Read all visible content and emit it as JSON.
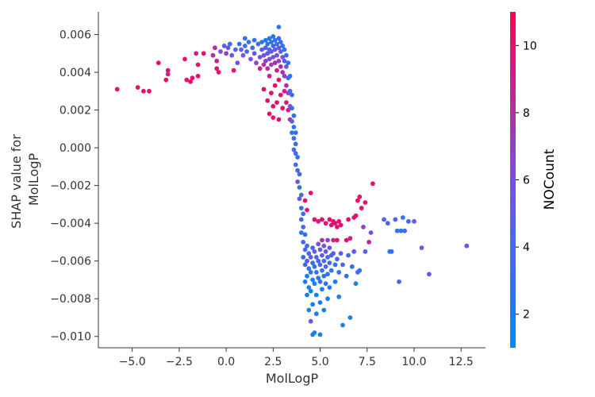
{
  "chart_data": {
    "type": "scatter",
    "xlabel": "MolLogP",
    "ylabel_lines": [
      "SHAP value for",
      "MolLogP"
    ],
    "xlim": [
      -6.8,
      13.8
    ],
    "ylim": [
      -0.0106,
      0.0072
    ],
    "x_ticks": [
      -5.0,
      -2.5,
      0.0,
      2.5,
      5.0,
      7.5,
      10.0,
      12.5
    ],
    "x_tick_labels": [
      "−5.0",
      "−2.5",
      "0.0",
      "2.5",
      "5.0",
      "7.5",
      "10.0",
      "12.5"
    ],
    "y_ticks": [
      0.006,
      0.004,
      0.002,
      0.0,
      -0.002,
      -0.004,
      -0.006,
      -0.008,
      -0.01
    ],
    "y_tick_labels": [
      "0.006",
      "0.004",
      "0.002",
      "0.000",
      "−0.002",
      "−0.004",
      "−0.006",
      "−0.008",
      "−0.010"
    ],
    "colorbar": {
      "label": "NOCount",
      "range": [
        1,
        11
      ],
      "ticks": [
        2,
        4,
        6,
        8,
        10
      ],
      "tick_labels": [
        "2",
        "4",
        "6",
        "8",
        "10"
      ],
      "colors": [
        "#008afb",
        "#7a4fe0",
        "#ff0052"
      ]
    },
    "grid": false,
    "points": [
      [
        -5.8,
        0.0031,
        10
      ],
      [
        -4.7,
        0.0032,
        10
      ],
      [
        -4.4,
        0.003,
        10
      ],
      [
        -4.1,
        0.003,
        10
      ],
      [
        -3.6,
        0.0045,
        10
      ],
      [
        -3.2,
        0.0036,
        10
      ],
      [
        -3.1,
        0.0041,
        10
      ],
      [
        -3.1,
        0.0039,
        9
      ],
      [
        -2.2,
        0.0047,
        10
      ],
      [
        -2.1,
        0.0036,
        10
      ],
      [
        -1.9,
        0.0035,
        10
      ],
      [
        -1.8,
        0.0037,
        10
      ],
      [
        -1.6,
        0.005,
        9
      ],
      [
        -1.5,
        0.0044,
        10
      ],
      [
        -1.5,
        0.0038,
        10
      ],
      [
        -1.2,
        0.005,
        10
      ],
      [
        -0.7,
        0.0049,
        8
      ],
      [
        -0.6,
        0.0053,
        8
      ],
      [
        -0.5,
        0.0042,
        10
      ],
      [
        -0.5,
        0.0046,
        9
      ],
      [
        -0.4,
        0.004,
        10
      ],
      [
        -0.3,
        0.0051,
        6
      ],
      [
        -0.1,
        0.0054,
        5
      ],
      [
        0.0,
        0.005,
        7
      ],
      [
        0.1,
        0.0053,
        5
      ],
      [
        0.2,
        0.0055,
        4
      ],
      [
        0.3,
        0.0049,
        5
      ],
      [
        0.4,
        0.0041,
        10
      ],
      [
        0.5,
        0.0052,
        4
      ],
      [
        0.6,
        0.0045,
        6
      ],
      [
        0.7,
        0.0055,
        3
      ],
      [
        0.8,
        0.0052,
        5
      ],
      [
        0.9,
        0.0049,
        6
      ],
      [
        1.0,
        0.0054,
        4
      ],
      [
        1.0,
        0.0058,
        3
      ],
      [
        1.1,
        0.0051,
        4
      ],
      [
        1.2,
        0.0056,
        3
      ],
      [
        1.3,
        0.0047,
        6
      ],
      [
        1.4,
        0.0053,
        4
      ],
      [
        1.5,
        0.0057,
        3
      ],
      [
        1.5,
        0.005,
        5
      ],
      [
        1.6,
        0.0045,
        7
      ],
      [
        1.7,
        0.0055,
        4
      ],
      [
        1.8,
        0.0048,
        6
      ],
      [
        1.8,
        0.0042,
        9
      ],
      [
        1.9,
        0.0056,
        3
      ],
      [
        1.9,
        0.0052,
        4
      ],
      [
        2.0,
        0.0049,
        6
      ],
      [
        2.0,
        0.0044,
        8
      ],
      [
        2.0,
        0.0031,
        10
      ],
      [
        2.1,
        0.0057,
        2
      ],
      [
        2.1,
        0.0053,
        5
      ],
      [
        2.1,
        0.0046,
        7
      ],
      [
        2.2,
        0.0055,
        3
      ],
      [
        2.2,
        0.005,
        5
      ],
      [
        2.2,
        0.0042,
        8
      ],
      [
        2.2,
        0.0025,
        10
      ],
      [
        2.3,
        0.0058,
        3
      ],
      [
        2.3,
        0.0052,
        4
      ],
      [
        2.3,
        0.0047,
        6
      ],
      [
        2.3,
        0.0038,
        9
      ],
      [
        2.3,
        0.0018,
        10
      ],
      [
        2.4,
        0.0056,
        3
      ],
      [
        2.4,
        0.0051,
        5
      ],
      [
        2.4,
        0.0044,
        7
      ],
      [
        2.4,
        0.0029,
        10
      ],
      [
        2.5,
        0.0059,
        2
      ],
      [
        2.5,
        0.0054,
        4
      ],
      [
        2.5,
        0.0048,
        6
      ],
      [
        2.5,
        0.0022,
        10
      ],
      [
        2.5,
        0.0016,
        10
      ],
      [
        2.6,
        0.0057,
        3
      ],
      [
        2.6,
        0.0052,
        5
      ],
      [
        2.6,
        0.0045,
        8
      ],
      [
        2.6,
        0.0033,
        10
      ],
      [
        2.7,
        0.0055,
        3
      ],
      [
        2.7,
        0.0049,
        6
      ],
      [
        2.7,
        0.0041,
        9
      ],
      [
        2.7,
        0.0024,
        10
      ],
      [
        2.8,
        0.0064,
        3
      ],
      [
        2.8,
        0.0058,
        4
      ],
      [
        2.8,
        0.0053,
        5
      ],
      [
        2.8,
        0.0046,
        7
      ],
      [
        2.8,
        0.0036,
        10
      ],
      [
        2.8,
        0.0015,
        10
      ],
      [
        2.9,
        0.0056,
        3
      ],
      [
        2.9,
        0.0051,
        5
      ],
      [
        2.9,
        0.0043,
        8
      ],
      [
        2.9,
        0.0028,
        10
      ],
      [
        3.0,
        0.0054,
        3
      ],
      [
        3.0,
        0.0048,
        6
      ],
      [
        3.0,
        0.004,
        8
      ],
      [
        3.0,
        0.0021,
        10
      ],
      [
        3.1,
        0.0052,
        3
      ],
      [
        3.1,
        0.0046,
        5
      ],
      [
        3.1,
        0.0038,
        7
      ],
      [
        3.1,
        0.003,
        9
      ],
      [
        3.2,
        0.0049,
        3
      ],
      [
        3.2,
        0.0043,
        5
      ],
      [
        3.2,
        0.0033,
        8
      ],
      [
        3.2,
        0.0024,
        10
      ],
      [
        3.3,
        0.0045,
        3
      ],
      [
        3.3,
        0.0037,
        4
      ],
      [
        3.3,
        0.0029,
        7
      ],
      [
        3.3,
        0.002,
        9
      ],
      [
        3.4,
        0.0038,
        3
      ],
      [
        3.4,
        0.003,
        4
      ],
      [
        3.4,
        0.0022,
        6
      ],
      [
        3.4,
        0.0015,
        8
      ],
      [
        3.5,
        0.0028,
        3
      ],
      [
        3.5,
        0.0021,
        4
      ],
      [
        3.5,
        0.0014,
        5
      ],
      [
        3.5,
        0.0008,
        3
      ],
      [
        3.6,
        0.0017,
        3
      ],
      [
        3.6,
        0.0011,
        3
      ],
      [
        3.6,
        0.0005,
        4
      ],
      [
        3.6,
        -0.0001,
        4
      ],
      [
        3.7,
        0.0008,
        3
      ],
      [
        3.7,
        0.0002,
        3
      ],
      [
        3.7,
        -0.0003,
        4
      ],
      [
        3.7,
        -0.0009,
        4
      ],
      [
        3.8,
        -0.0005,
        3
      ],
      [
        3.8,
        -0.0012,
        4
      ],
      [
        3.8,
        -0.0018,
        5
      ],
      [
        3.9,
        -0.0014,
        4
      ],
      [
        3.9,
        -0.0021,
        3
      ],
      [
        3.9,
        -0.0027,
        5
      ],
      [
        4.0,
        -0.0025,
        4
      ],
      [
        4.0,
        -0.0032,
        3
      ],
      [
        4.0,
        -0.0038,
        4
      ],
      [
        4.0,
        -0.0045,
        3
      ],
      [
        4.1,
        -0.0035,
        3
      ],
      [
        4.1,
        -0.0042,
        4
      ],
      [
        4.1,
        -0.005,
        4
      ],
      [
        4.1,
        -0.0058,
        3
      ],
      [
        4.2,
        -0.0028,
        10
      ],
      [
        4.2,
        -0.0046,
        3
      ],
      [
        4.2,
        -0.0054,
        4
      ],
      [
        4.2,
        -0.0062,
        3
      ],
      [
        4.2,
        -0.0071,
        2
      ],
      [
        4.3,
        -0.0033,
        10
      ],
      [
        4.3,
        -0.0052,
        4
      ],
      [
        4.3,
        -0.006,
        5
      ],
      [
        4.3,
        -0.0068,
        2
      ],
      [
        4.3,
        -0.0078,
        2
      ],
      [
        4.4,
        -0.0056,
        4
      ],
      [
        4.4,
        -0.0064,
        3
      ],
      [
        4.4,
        -0.0074,
        2
      ],
      [
        4.4,
        -0.0086,
        2
      ],
      [
        4.5,
        -0.0024,
        10
      ],
      [
        4.5,
        -0.0058,
        5
      ],
      [
        4.5,
        -0.0066,
        3
      ],
      [
        4.5,
        -0.0076,
        2
      ],
      [
        4.5,
        -0.0092,
        5
      ],
      [
        4.6,
        -0.0053,
        4
      ],
      [
        4.6,
        -0.0061,
        3
      ],
      [
        4.6,
        -0.007,
        2
      ],
      [
        4.6,
        -0.0083,
        2
      ],
      [
        4.6,
        -0.0099,
        2
      ],
      [
        4.7,
        -0.0038,
        10
      ],
      [
        4.7,
        -0.0055,
        5
      ],
      [
        4.7,
        -0.0063,
        3
      ],
      [
        4.7,
        -0.0072,
        2
      ],
      [
        4.7,
        -0.0098,
        2
      ],
      [
        4.8,
        -0.0058,
        4
      ],
      [
        4.8,
        -0.0066,
        3
      ],
      [
        4.8,
        -0.0078,
        2
      ],
      [
        4.8,
        -0.0088,
        2
      ],
      [
        4.9,
        -0.0039,
        9
      ],
      [
        4.9,
        -0.0051,
        6
      ],
      [
        4.9,
        -0.006,
        4
      ],
      [
        4.9,
        -0.0069,
        3
      ],
      [
        5.0,
        -0.0054,
        5
      ],
      [
        5.0,
        -0.0062,
        4
      ],
      [
        5.0,
        -0.0071,
        3
      ],
      [
        5.0,
        -0.0082,
        2
      ],
      [
        5.0,
        -0.0099,
        2
      ],
      [
        5.1,
        -0.0038,
        10
      ],
      [
        5.1,
        -0.0049,
        8
      ],
      [
        5.1,
        -0.0057,
        5
      ],
      [
        5.1,
        -0.0065,
        3
      ],
      [
        5.1,
        -0.0075,
        2
      ],
      [
        5.2,
        -0.0052,
        6
      ],
      [
        5.2,
        -0.006,
        4
      ],
      [
        5.2,
        -0.0068,
        3
      ],
      [
        5.2,
        -0.0086,
        2
      ],
      [
        5.3,
        -0.004,
        10
      ],
      [
        5.3,
        -0.0055,
        5
      ],
      [
        5.3,
        -0.0063,
        4
      ],
      [
        5.3,
        -0.0072,
        3
      ],
      [
        5.4,
        -0.0049,
        7
      ],
      [
        5.4,
        -0.0058,
        4
      ],
      [
        5.4,
        -0.0067,
        3
      ],
      [
        5.4,
        -0.008,
        2
      ],
      [
        5.5,
        -0.0038,
        10
      ],
      [
        5.5,
        -0.0053,
        5
      ],
      [
        5.5,
        -0.0061,
        4
      ],
      [
        5.5,
        -0.0074,
        2
      ],
      [
        5.6,
        -0.0041,
        10
      ],
      [
        5.6,
        -0.0057,
        4
      ],
      [
        5.6,
        -0.0065,
        3
      ],
      [
        5.7,
        -0.0039,
        10
      ],
      [
        5.7,
        -0.0049,
        9
      ],
      [
        5.7,
        -0.0056,
        5
      ],
      [
        5.8,
        -0.004,
        10
      ],
      [
        5.8,
        -0.0062,
        3
      ],
      [
        5.8,
        -0.0071,
        2
      ],
      [
        5.9,
        -0.0042,
        10
      ],
      [
        5.9,
        -0.0049,
        10
      ],
      [
        5.9,
        -0.0059,
        4
      ],
      [
        6.0,
        -0.0039,
        10
      ],
      [
        6.0,
        -0.0066,
        3
      ],
      [
        6.0,
        -0.0079,
        2
      ],
      [
        6.1,
        -0.0041,
        10
      ],
      [
        6.1,
        -0.0056,
        5
      ],
      [
        6.2,
        -0.0094,
        2
      ],
      [
        6.2,
        -0.0062,
        4
      ],
      [
        6.4,
        -0.0049,
        10
      ],
      [
        6.4,
        -0.0068,
        3
      ],
      [
        6.5,
        -0.0038,
        10
      ],
      [
        6.5,
        -0.0057,
        4
      ],
      [
        6.6,
        -0.0048,
        9
      ],
      [
        6.6,
        -0.009,
        2
      ],
      [
        6.7,
        -0.0063,
        3
      ],
      [
        6.8,
        -0.0037,
        10
      ],
      [
        6.8,
        -0.0055,
        5
      ],
      [
        6.9,
        -0.0036,
        10
      ],
      [
        6.9,
        -0.0072,
        2
      ],
      [
        7.0,
        -0.0028,
        10
      ],
      [
        7.0,
        -0.0066,
        4
      ],
      [
        7.1,
        -0.0026,
        10
      ],
      [
        7.1,
        -0.0065,
        3
      ],
      [
        7.2,
        -0.0032,
        10
      ],
      [
        7.3,
        -0.0042,
        7
      ],
      [
        7.4,
        -0.0055,
        5
      ],
      [
        7.4,
        -0.0029,
        10
      ],
      [
        7.6,
        -0.005,
        9
      ],
      [
        7.7,
        -0.0045,
        6
      ],
      [
        7.8,
        -0.0019,
        10
      ],
      [
        8.4,
        -0.0038,
        4
      ],
      [
        8.6,
        -0.004,
        4
      ],
      [
        8.7,
        -0.0055,
        3
      ],
      [
        8.8,
        -0.0055,
        3
      ],
      [
        9.0,
        -0.0038,
        4
      ],
      [
        9.1,
        -0.0044,
        3
      ],
      [
        9.2,
        -0.0071,
        4
      ],
      [
        9.3,
        -0.0044,
        3
      ],
      [
        9.4,
        -0.0037,
        3
      ],
      [
        9.5,
        -0.0044,
        3
      ],
      [
        9.7,
        -0.0039,
        4
      ],
      [
        10.0,
        -0.0039,
        5
      ],
      [
        10.4,
        -0.0053,
        5
      ],
      [
        10.8,
        -0.0067,
        5
      ],
      [
        12.8,
        -0.0052,
        6
      ]
    ]
  }
}
